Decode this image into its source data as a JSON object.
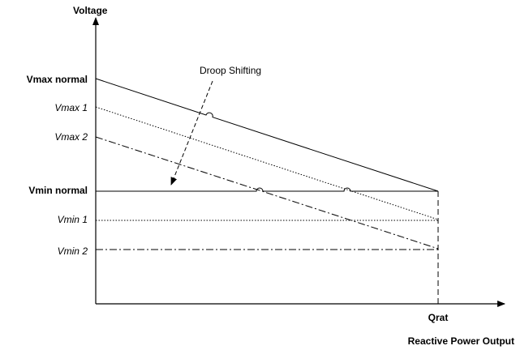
{
  "y_axis": {
    "title": "Voltage",
    "labels": [
      "Vmax normal",
      "Vmax 1",
      "Vmax 2",
      "Vmin normal",
      "Vmin 1",
      "Vmin 2"
    ]
  },
  "x_axis": {
    "label": "Qrat",
    "title": "Reactive Power Output"
  },
  "annotation": "Droop Shifting"
}
